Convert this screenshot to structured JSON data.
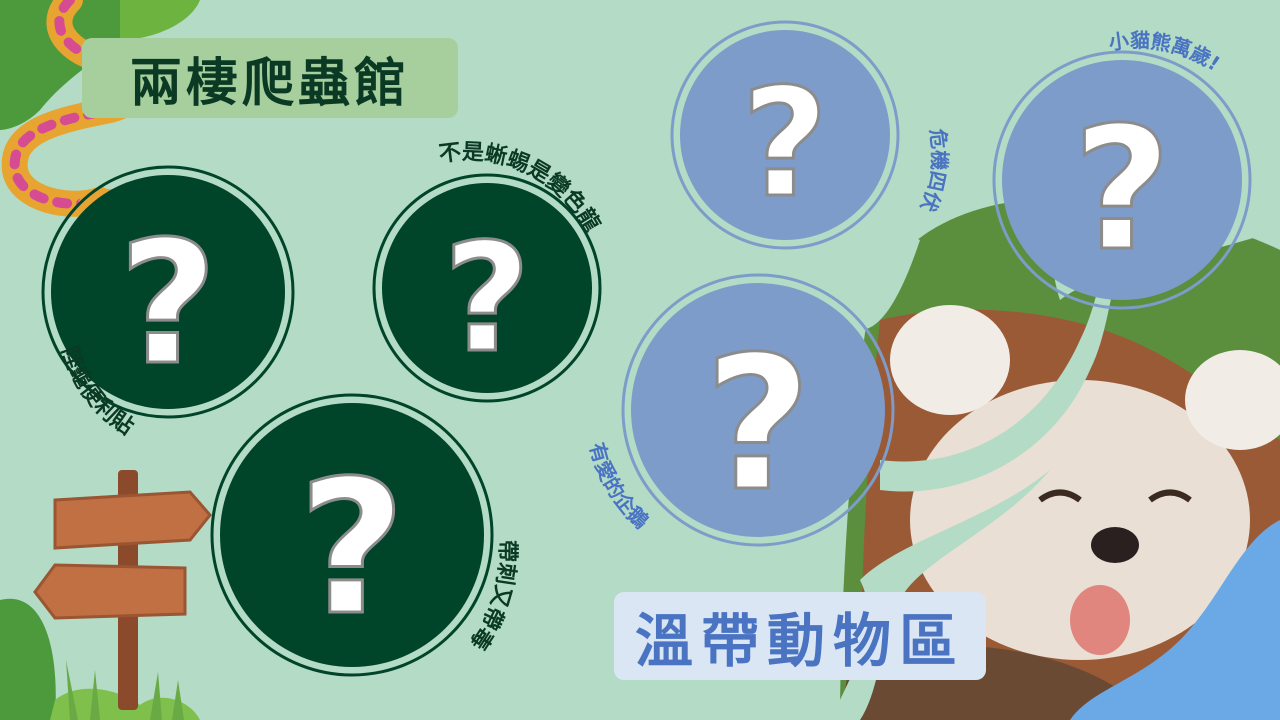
{
  "reptile_section": {
    "title": "兩棲爬蟲館",
    "items": [
      {
        "label": "陸龜便利貼",
        "symbol": "?"
      },
      {
        "label": "不是蜥蜴是變色龍",
        "symbol": "?"
      },
      {
        "label": "帶刺又帶毒",
        "symbol": "?"
      }
    ]
  },
  "temperate_section": {
    "title": "溫帶動物區",
    "items": [
      {
        "label": "危機四伏",
        "symbol": "?"
      },
      {
        "label": "小貓熊萬歲!",
        "symbol": "?"
      },
      {
        "label": "有愛的企鵝",
        "symbol": "?"
      }
    ]
  },
  "colors": {
    "background": "#b3dbc6",
    "reptile_circle": "#00442a",
    "reptile_label_bg": "#a7cf9d",
    "temperate_circle": "#7e9cc9",
    "temperate_label_bg": "#dbe6f4",
    "temperate_text": "#4a74c2",
    "reptile_text": "#0b3a24"
  }
}
